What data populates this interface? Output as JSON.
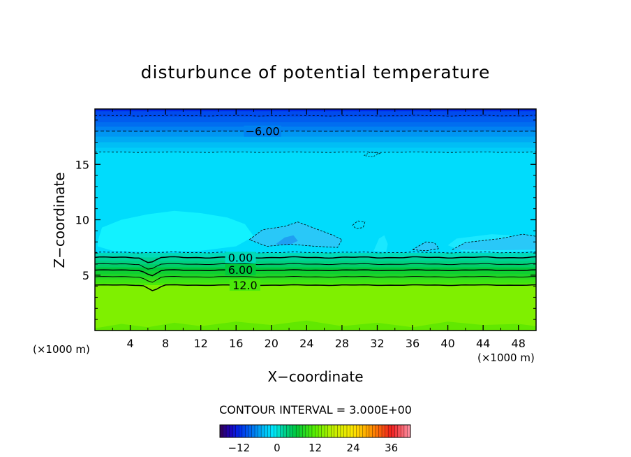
{
  "chart_data": {
    "type": "heatmap",
    "title": "disturbunce of potential temperature",
    "xlabel": "X−coordinate",
    "ylabel": "Z−coordinate",
    "x_unit": "(×1000 m)",
    "y_unit": "(×1000 m)",
    "xlim": [
      0,
      50
    ],
    "ylim": [
      0,
      20
    ],
    "x_ticks": [
      4,
      8,
      12,
      16,
      20,
      24,
      28,
      32,
      36,
      40,
      44,
      48
    ],
    "y_ticks": [
      5,
      10,
      15
    ],
    "contour_interval_text": "CONTOUR INTERVAL = 3.000E+00",
    "contour_levels": [
      -6,
      -3,
      0,
      3,
      6,
      9,
      12
    ],
    "contour_labels": [
      {
        "text": "−6.00",
        "x": 19,
        "z": 18.0
      },
      {
        "text": "0.00",
        "x": 16.5,
        "z": 6.6
      },
      {
        "text": "6.00",
        "x": 16.5,
        "z": 5.5
      },
      {
        "text": "12.0",
        "x": 17,
        "z": 4.1
      }
    ],
    "layers": [
      {
        "z_from": 19.8,
        "z_to": 20.0,
        "value": -12
      },
      {
        "z_from": 19.3,
        "z_to": 19.8,
        "value": -10
      },
      {
        "z_from": 18.8,
        "z_to": 19.3,
        "value": -9
      },
      {
        "z_from": 18.4,
        "z_to": 18.8,
        "value": -8
      },
      {
        "z_from": 18.0,
        "z_to": 18.4,
        "value": -7
      },
      {
        "z_from": 17.5,
        "z_to": 18.0,
        "value": -6
      },
      {
        "z_from": 17.0,
        "z_to": 17.5,
        "value": -5
      },
      {
        "z_from": 16.5,
        "z_to": 17.0,
        "value": -4
      },
      {
        "z_from": 16.1,
        "z_to": 16.5,
        "value": -3
      },
      {
        "z_from": 7.0,
        "z_to": 16.1,
        "value": -2
      },
      {
        "z_from": 6.6,
        "z_to": 7.0,
        "value": 1
      },
      {
        "z_from": 6.3,
        "z_to": 6.6,
        "value": 2
      },
      {
        "z_from": 6.0,
        "z_to": 6.3,
        "value": 3
      },
      {
        "z_from": 5.7,
        "z_to": 6.0,
        "value": 4
      },
      {
        "z_from": 5.4,
        "z_to": 5.7,
        "value": 6
      },
      {
        "z_from": 5.1,
        "z_to": 5.4,
        "value": 7
      },
      {
        "z_from": 4.8,
        "z_to": 5.1,
        "value": 8
      },
      {
        "z_from": 4.6,
        "z_to": 4.8,
        "value": 9
      },
      {
        "z_from": 4.3,
        "z_to": 4.6,
        "value": 10
      },
      {
        "z_from": 4.1,
        "z_to": 4.3,
        "value": 11
      },
      {
        "z_from": 0.0,
        "z_to": 4.1,
        "value": 14
      }
    ],
    "colorbar": {
      "min": -18,
      "max": 42,
      "ticks": [
        -12,
        0,
        12,
        24,
        36
      ],
      "tick_labels": [
        "−12",
        "0",
        "12",
        "24",
        "36"
      ]
    }
  }
}
